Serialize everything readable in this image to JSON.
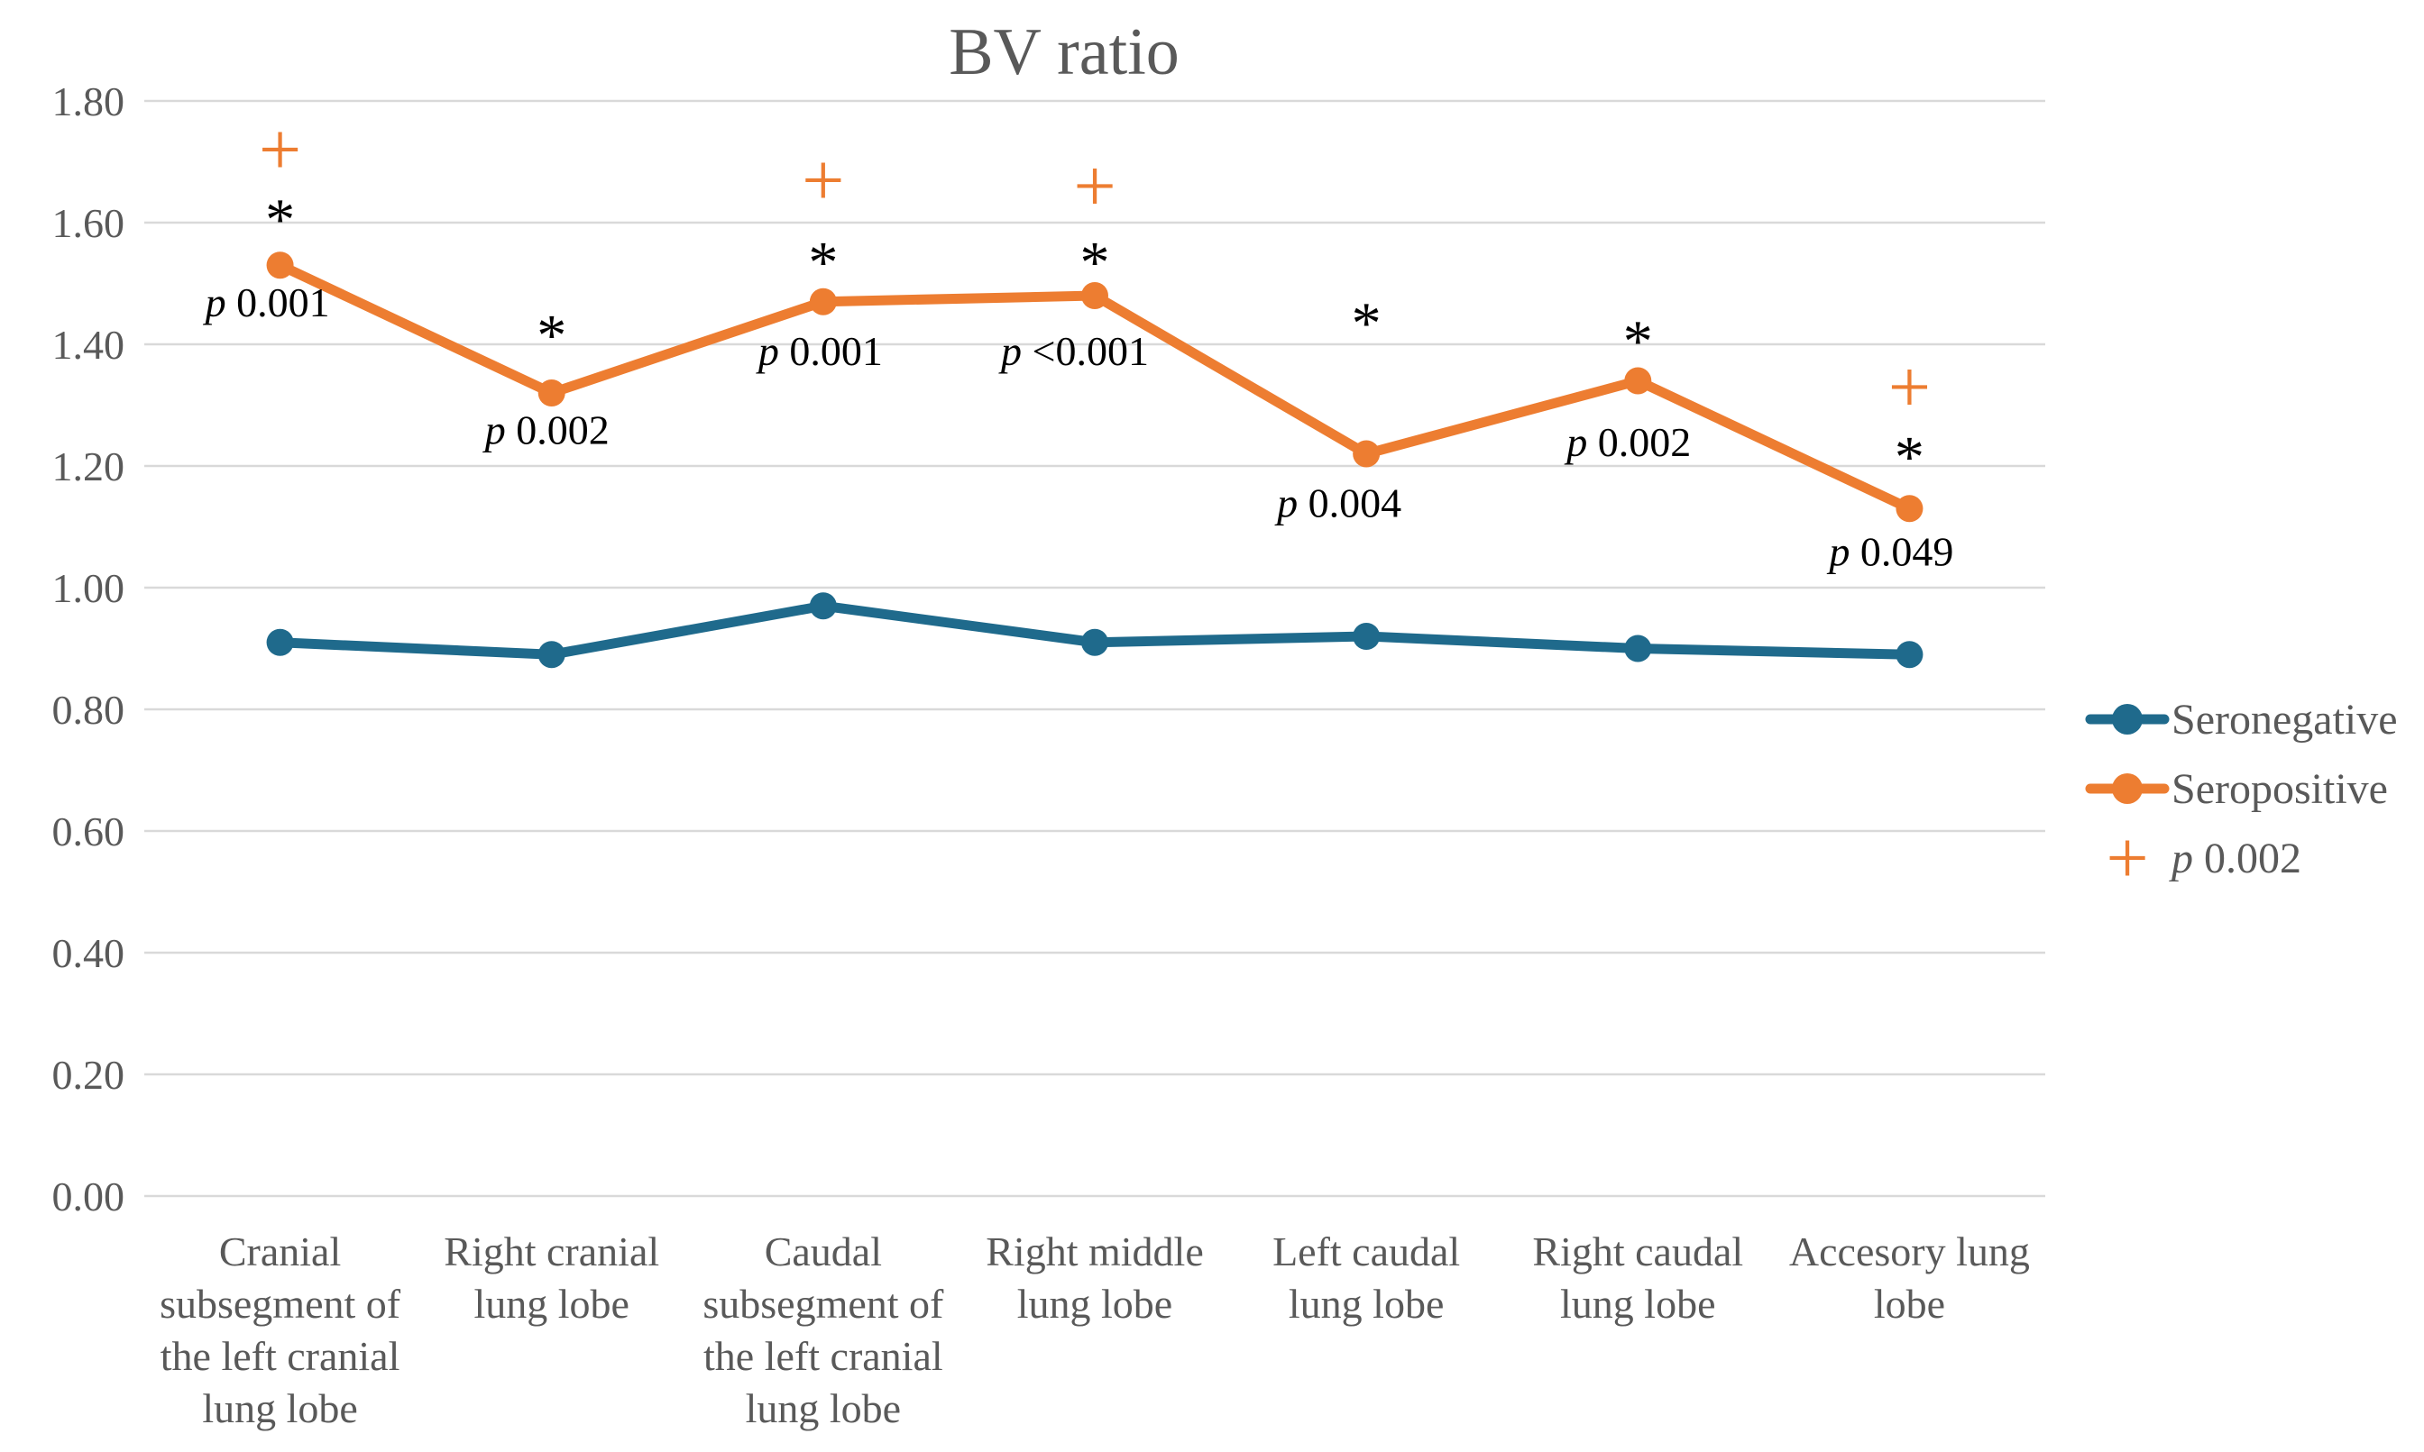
{
  "title": "BV ratio",
  "colors": {
    "seronegative": "#1f6a8c",
    "seropositive": "#ed7d31",
    "gridline": "#d9d9d9",
    "axis_text": "#595959",
    "title_text": "#595959",
    "legend_text": "#595959",
    "annotation_text": "#000000",
    "background": "#ffffff"
  },
  "legend": {
    "position": "right",
    "items": [
      {
        "marker": "line-dot",
        "color_key": "seronegative",
        "label": "Seronegative"
      },
      {
        "marker": "line-dot",
        "color_key": "seropositive",
        "label": "Seropositive"
      },
      {
        "marker": "plus",
        "color_key": "seropositive",
        "label": "p 0.002"
      }
    ]
  },
  "chart_data": {
    "type": "line",
    "title": "BV ratio",
    "xlabel": "",
    "ylabel": "",
    "ylim": [
      0.0,
      1.8
    ],
    "ytick_step": 0.2,
    "ytick_labels": [
      "0.00",
      "0.20",
      "0.40",
      "0.60",
      "0.80",
      "1.00",
      "1.20",
      "1.40",
      "1.60",
      "1.80"
    ],
    "grid": true,
    "legend_position": "right",
    "categories": [
      "Cranial subsegment of the left cranial lung lobe",
      "Right cranial lung lobe",
      "Caudal subsegment of the left cranial lung lobe",
      "Right middle lung lobe",
      "Left caudal lung lobe",
      "Right caudal lung lobe",
      "Accesory lung lobe"
    ],
    "x_label_lines": [
      [
        "Cranial",
        "subsegment of",
        "the left cranial",
        "lung lobe"
      ],
      [
        "Right cranial",
        "lung lobe"
      ],
      [
        "Caudal",
        "subsegment of",
        "the left cranial",
        "lung lobe"
      ],
      [
        "Right middle",
        "lung lobe"
      ],
      [
        "Left caudal",
        "lung lobe"
      ],
      [
        "Right caudal",
        "lung lobe"
      ],
      [
        "Accesory lung",
        "lobe"
      ]
    ],
    "series": [
      {
        "name": "Seronegative",
        "color_key": "seronegative",
        "values": [
          0.91,
          0.89,
          0.97,
          0.91,
          0.92,
          0.9,
          0.89
        ]
      },
      {
        "name": "Seropositive",
        "color_key": "seropositive",
        "values": [
          1.53,
          1.32,
          1.47,
          1.48,
          1.22,
          1.34,
          1.13
        ]
      }
    ],
    "annotations": {
      "plus_markers": [
        {
          "index": 0,
          "y": 1.72,
          "symbol": "+"
        },
        {
          "index": 2,
          "y": 1.67,
          "symbol": "+"
        },
        {
          "index": 3,
          "y": 1.66,
          "symbol": "+"
        },
        {
          "index": 6,
          "y": 1.33,
          "symbol": "+"
        }
      ],
      "star_markers": [
        {
          "index": 0,
          "y": 1.62,
          "symbol": "*"
        },
        {
          "index": 1,
          "y": 1.43,
          "symbol": "*"
        },
        {
          "index": 2,
          "y": 1.55,
          "symbol": "*"
        },
        {
          "index": 3,
          "y": 1.55,
          "symbol": "*"
        },
        {
          "index": 4,
          "y": 1.45,
          "symbol": "*"
        },
        {
          "index": 5,
          "y": 1.42,
          "symbol": "*"
        },
        {
          "index": 6,
          "y": 1.23,
          "symbol": "*"
        }
      ],
      "p_labels": [
        {
          "index": 0,
          "y": 1.47,
          "dx": -14,
          "text": "p 0.001"
        },
        {
          "index": 1,
          "y": 1.26,
          "dx": -5,
          "text": "p 0.002"
        },
        {
          "index": 2,
          "y": 1.39,
          "dx": -3,
          "text": "p 0.001"
        },
        {
          "index": 3,
          "y": 1.39,
          "dx": -22,
          "text": "p <0.001"
        },
        {
          "index": 4,
          "y": 1.14,
          "dx": -30,
          "text": "p 0.004"
        },
        {
          "index": 5,
          "y": 1.24,
          "dx": -10,
          "text": "p 0.002"
        },
        {
          "index": 6,
          "y": 1.06,
          "dx": -20,
          "text": "p 0.049"
        }
      ]
    }
  }
}
